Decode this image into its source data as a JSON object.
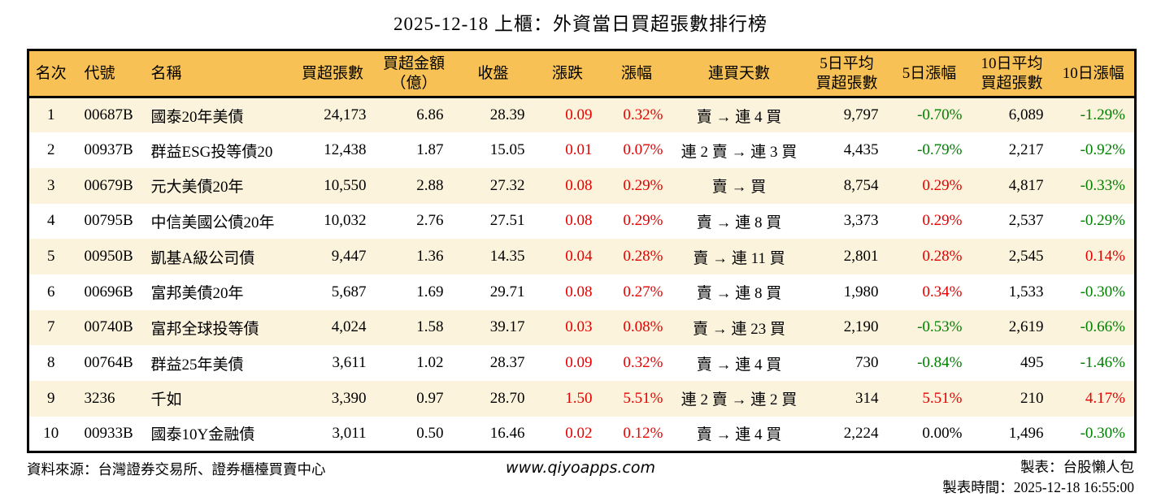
{
  "title": "2025-12-18 上櫃：外資當日買超張數排行榜",
  "table": {
    "headers": [
      "名次",
      "代號",
      "名稱",
      "買超張數",
      "買超金額\n（億）",
      "收盤",
      "漲跌",
      "漲幅",
      "連買天數",
      "5日平均\n買超張數",
      "5日漲幅",
      "10日平均\n買超張數",
      "10日漲幅"
    ],
    "rows": [
      [
        "1",
        "00687B",
        "國泰20年美債",
        "24,173",
        "6.86",
        "28.39",
        "0.09",
        "0.32%",
        "賣 → 連 4 買",
        "9,797",
        "-0.70%",
        "6,089",
        "-1.29%"
      ],
      [
        "2",
        "00937B",
        "群益ESG投等債20",
        "12,438",
        "1.87",
        "15.05",
        "0.01",
        "0.07%",
        "連 2 賣 → 連 3 買",
        "4,435",
        "-0.79%",
        "2,217",
        "-0.92%"
      ],
      [
        "3",
        "00679B",
        "元大美債20年",
        "10,550",
        "2.88",
        "27.32",
        "0.08",
        "0.29%",
        "賣 → 買",
        "8,754",
        "0.29%",
        "4,817",
        "-0.33%"
      ],
      [
        "4",
        "00795B",
        "中信美國公債20年",
        "10,032",
        "2.76",
        "27.51",
        "0.08",
        "0.29%",
        "賣 → 連 8 買",
        "3,373",
        "0.29%",
        "2,537",
        "-0.29%"
      ],
      [
        "5",
        "00950B",
        "凱基A級公司債",
        "9,447",
        "1.36",
        "14.35",
        "0.04",
        "0.28%",
        "賣 → 連 11 買",
        "2,801",
        "0.28%",
        "2,545",
        "0.14%"
      ],
      [
        "6",
        "00696B",
        "富邦美債20年",
        "5,687",
        "1.69",
        "29.71",
        "0.08",
        "0.27%",
        "賣 → 連 8 買",
        "1,980",
        "0.34%",
        "1,533",
        "-0.30%"
      ],
      [
        "7",
        "00740B",
        "富邦全球投等債",
        "4,024",
        "1.58",
        "39.17",
        "0.03",
        "0.08%",
        "賣 → 連 23 買",
        "2,190",
        "-0.53%",
        "2,619",
        "-0.66%"
      ],
      [
        "8",
        "00764B",
        "群益25年美債",
        "3,611",
        "1.02",
        "28.37",
        "0.09",
        "0.32%",
        "賣 → 連 4 買",
        "730",
        "-0.84%",
        "495",
        "-1.46%"
      ],
      [
        "9",
        "3236",
        "千如",
        "3,390",
        "0.97",
        "28.70",
        "1.50",
        "5.51%",
        "連 2 賣 → 連 2 買",
        "314",
        "5.51%",
        "210",
        "4.17%"
      ],
      [
        "10",
        "00933B",
        "國泰10Y金融債",
        "3,011",
        "0.50",
        "16.46",
        "0.02",
        "0.12%",
        "賣 → 連 4 買",
        "2,224",
        "0.00%",
        "1,496",
        "-0.30%"
      ]
    ]
  },
  "footer": {
    "source": "資料來源：台灣證券交易所、證券櫃檯買賣中心",
    "website": "www.qiyoapps.com",
    "maker": "製表：台股懶人包",
    "made_time": "製表時間：2025-12-18 16:55:00"
  },
  "colors": {
    "up": "#e60000",
    "down": "#008000",
    "neutral": "#000000",
    "header_bg": "#f7c155",
    "row_alt_bg": "#fbf3dc"
  }
}
